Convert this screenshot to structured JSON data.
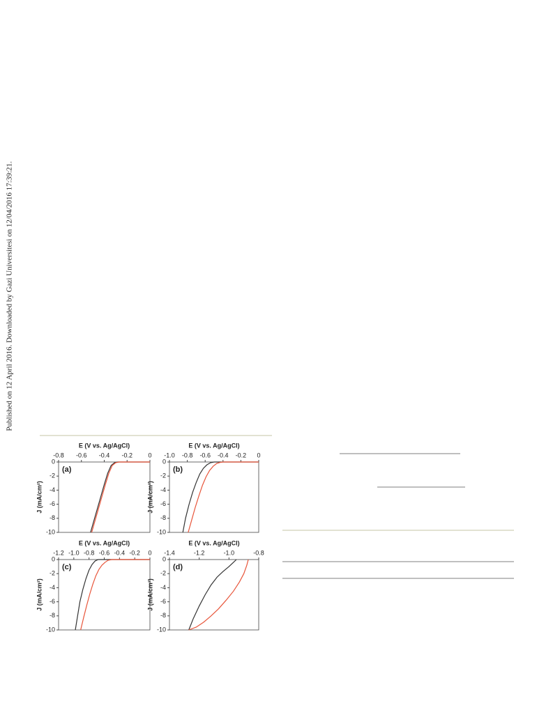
{
  "side_note": "Published on 12 April 2016. Downloaded by Gazi Universitesi on 12/04/2016 17:39:21.",
  "chart_data": [
    {
      "type": "line",
      "panel_label": "(a)",
      "x_label": "E (V vs. Ag/AgCl)",
      "y_label": "J (mA/cm²)",
      "xlim": [
        -0.8,
        0
      ],
      "xticks": [
        -0.8,
        -0.6,
        -0.4,
        -0.2,
        0
      ],
      "ylim": [
        -10,
        0
      ],
      "yticks": [
        0,
        -2,
        -4,
        -6,
        -8,
        -10
      ],
      "series": [
        {
          "color": "#333333",
          "x": [
            -0.52,
            -0.49,
            -0.46,
            -0.43,
            -0.4,
            -0.37,
            -0.34,
            -0.31,
            -0.28,
            -0.2,
            -0.1,
            0
          ],
          "values": [
            -10,
            -8.3,
            -6.6,
            -4.9,
            -3.2,
            -1.6,
            -0.5,
            -0.1,
            0,
            0,
            0,
            0
          ]
        },
        {
          "color": "#e8553a",
          "x": [
            -0.51,
            -0.48,
            -0.45,
            -0.42,
            -0.39,
            -0.36,
            -0.33,
            -0.3,
            -0.27,
            -0.2,
            -0.1,
            0
          ],
          "values": [
            -10,
            -8.3,
            -6.6,
            -4.9,
            -3.2,
            -1.6,
            -0.5,
            -0.1,
            0,
            0,
            0,
            0
          ]
        }
      ]
    },
    {
      "type": "line",
      "panel_label": "(b)",
      "x_label": "E (V vs. Ag/AgCl)",
      "y_label": "J (mA/cm²)",
      "xlim": [
        -1,
        0
      ],
      "xticks": [
        {
          "value": -1,
          "label": "-1.0"
        },
        -0.8,
        -0.6,
        -0.4,
        -0.2,
        0
      ],
      "ylim": [
        -10,
        0
      ],
      "yticks": [
        0,
        -2,
        -4,
        -6,
        -8,
        -10
      ],
      "series": [
        {
          "color": "#333333",
          "x": [
            -0.85,
            -0.82,
            -0.78,
            -0.74,
            -0.7,
            -0.66,
            -0.62,
            -0.58,
            -0.54,
            -0.5,
            -0.4,
            -0.2,
            0
          ],
          "values": [
            -10,
            -8,
            -6,
            -4.3,
            -2.9,
            -1.7,
            -0.9,
            -0.4,
            -0.1,
            0,
            0,
            0,
            0
          ]
        },
        {
          "color": "#e8553a",
          "x": [
            -0.79,
            -0.75,
            -0.71,
            -0.67,
            -0.63,
            -0.59,
            -0.55,
            -0.51,
            -0.47,
            -0.43,
            -0.4,
            -0.2,
            0
          ],
          "values": [
            -10,
            -8.2,
            -6.4,
            -4.8,
            -3.3,
            -2.1,
            -1.2,
            -0.6,
            -0.2,
            -0.05,
            0,
            0,
            0
          ]
        }
      ]
    },
    {
      "type": "line",
      "panel_label": "(c)",
      "x_label": "E (V vs. Ag/AgCl)",
      "y_label": "J (mA/cm²)",
      "xlim": [
        -1.2,
        0
      ],
      "xticks": [
        -1.2,
        {
          "value": -1,
          "label": "-1.0"
        },
        -0.8,
        -0.6,
        -0.4,
        -0.2,
        0
      ],
      "ylim": [
        -10,
        0
      ],
      "yticks": [
        0,
        -2,
        -4,
        -6,
        -8,
        -10
      ],
      "series": [
        {
          "color": "#333333",
          "x": [
            -0.98,
            -0.95,
            -0.92,
            -0.88,
            -0.84,
            -0.8,
            -0.76,
            -0.72,
            -0.68,
            -0.6,
            -0.4,
            -0.2,
            0
          ],
          "values": [
            -10,
            -8,
            -6,
            -4.2,
            -2.7,
            -1.5,
            -0.7,
            -0.2,
            0,
            0,
            0,
            0,
            0
          ]
        },
        {
          "color": "#e8553a",
          "x": [
            -0.91,
            -0.87,
            -0.83,
            -0.79,
            -0.75,
            -0.71,
            -0.67,
            -0.63,
            -0.59,
            -0.55,
            -0.5,
            -0.4,
            -0.2,
            0
          ],
          "values": [
            -10,
            -8.2,
            -6.5,
            -4.9,
            -3.5,
            -2.3,
            -1.4,
            -0.8,
            -0.4,
            -0.1,
            0,
            0,
            0,
            0
          ]
        }
      ]
    },
    {
      "type": "line",
      "panel_label": "(d)",
      "x_label": "E (V vs. Ag/AgCl)",
      "y_label": "J (mA/cm²)",
      "xlim": [
        -1.4,
        -0.8
      ],
      "xticks": [
        -1.4,
        -1.2,
        {
          "value": -1,
          "label": "-1.0"
        },
        -0.8
      ],
      "ylim": [
        -10,
        0
      ],
      "yticks": [
        0,
        -2,
        -4,
        -6,
        -8,
        -10
      ],
      "series": [
        {
          "color": "#333333",
          "x": [
            -1.27,
            -1.24,
            -1.2,
            -1.16,
            -1.12,
            -1.08,
            -1.04,
            -1.0,
            -0.97,
            -0.95
          ],
          "values": [
            -10,
            -8.4,
            -6.6,
            -5.0,
            -3.6,
            -2.5,
            -1.7,
            -1.0,
            -0.4,
            0
          ]
        },
        {
          "color": "#e8553a",
          "x": [
            -1.27,
            -1.22,
            -1.17,
            -1.12,
            -1.07,
            -1.02,
            -0.97,
            -0.93,
            -0.9,
            -0.88,
            -0.87
          ],
          "values": [
            -10,
            -9.6,
            -8.9,
            -8.0,
            -7.0,
            -5.8,
            -4.5,
            -3.2,
            -2.0,
            -0.8,
            0
          ]
        }
      ]
    }
  ]
}
